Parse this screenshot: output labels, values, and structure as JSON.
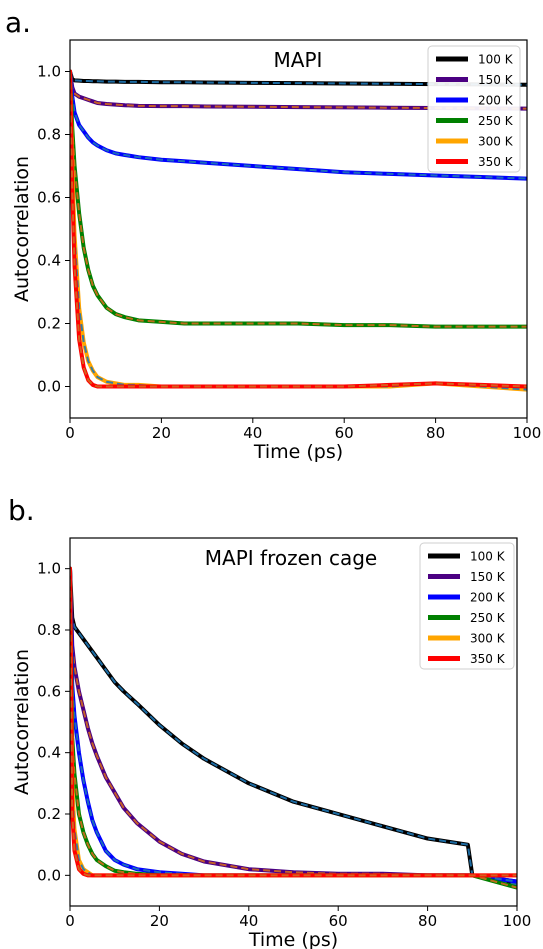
{
  "chart_data": [
    {
      "type": "line",
      "panel_label": "a.",
      "title": "MAPI",
      "xlabel": "Time (ps)",
      "ylabel": "Autocorrelation",
      "xlim": [
        0,
        100
      ],
      "ylim": [
        -0.1,
        1.1
      ],
      "xticks": [
        0,
        20,
        40,
        60,
        80,
        100
      ],
      "yticks": [
        0.0,
        0.2,
        0.4,
        0.6,
        0.8,
        1.0
      ],
      "ytick_labels": [
        "0.0",
        "0.2",
        "0.4",
        "0.6",
        "0.8",
        "1.0"
      ],
      "grid": false,
      "legend_position": "top-right",
      "x": [
        0,
        0.5,
        1,
        2,
        3,
        4,
        5,
        6,
        8,
        10,
        12,
        15,
        20,
        25,
        30,
        40,
        50,
        60,
        70,
        80,
        90,
        100
      ],
      "series": [
        {
          "name": "100 K",
          "color": "#000000",
          "values": [
            1.0,
            0.975,
            0.972,
            0.971,
            0.97,
            0.97,
            0.969,
            0.969,
            0.968,
            0.968,
            0.967,
            0.967,
            0.966,
            0.966,
            0.965,
            0.964,
            0.963,
            0.962,
            0.961,
            0.96,
            0.959,
            0.958
          ]
        },
        {
          "name": "150 K",
          "color": "#4b0082",
          "values": [
            1.0,
            0.95,
            0.93,
            0.92,
            0.915,
            0.91,
            0.905,
            0.9,
            0.897,
            0.895,
            0.893,
            0.891,
            0.89,
            0.89,
            0.889,
            0.888,
            0.887,
            0.886,
            0.885,
            0.884,
            0.883,
            0.882
          ]
        },
        {
          "name": "200 K",
          "color": "#0000ff",
          "values": [
            1.0,
            0.92,
            0.87,
            0.83,
            0.81,
            0.79,
            0.775,
            0.765,
            0.75,
            0.74,
            0.735,
            0.728,
            0.72,
            0.715,
            0.71,
            0.7,
            0.69,
            0.68,
            0.675,
            0.67,
            0.665,
            0.66
          ]
        },
        {
          "name": "250 K",
          "color": "#008000",
          "values": [
            1.0,
            0.82,
            0.7,
            0.55,
            0.44,
            0.37,
            0.32,
            0.29,
            0.25,
            0.23,
            0.22,
            0.21,
            0.205,
            0.2,
            0.2,
            0.2,
            0.2,
            0.195,
            0.195,
            0.19,
            0.19,
            0.19
          ]
        },
        {
          "name": "300 K",
          "color": "#ffa500",
          "values": [
            1.0,
            0.7,
            0.48,
            0.25,
            0.14,
            0.08,
            0.05,
            0.03,
            0.015,
            0.01,
            0.005,
            0.005,
            0.0,
            0.0,
            0.0,
            0.0,
            0.0,
            0.0,
            0.0,
            0.01,
            0.0,
            -0.01
          ]
        },
        {
          "name": "350 K",
          "color": "#ff0000",
          "values": [
            1.0,
            0.62,
            0.38,
            0.15,
            0.06,
            0.02,
            0.005,
            0.0,
            0.0,
            0.0,
            0.0,
            0.0,
            0.0,
            0.0,
            0.0,
            0.0,
            0.0,
            0.0,
            0.005,
            0.01,
            0.005,
            0.0
          ]
        }
      ]
    },
    {
      "type": "line",
      "panel_label": "b.",
      "title": "MAPI frozen cage",
      "xlabel": "Time (ps)",
      "ylabel": "Autocorrelation",
      "xlim": [
        0,
        100
      ],
      "ylim": [
        -0.1,
        1.1
      ],
      "xticks": [
        0,
        20,
        40,
        60,
        80,
        100
      ],
      "yticks": [
        0.0,
        0.2,
        0.4,
        0.6,
        0.8,
        1.0
      ],
      "ytick_labels": [
        "0.0",
        "0.2",
        "0.4",
        "0.6",
        "0.8",
        "1.0"
      ],
      "grid": false,
      "legend_position": "top-right",
      "x": [
        0,
        0.5,
        1,
        2,
        3,
        4,
        5,
        6,
        8,
        10,
        12,
        15,
        20,
        25,
        30,
        40,
        50,
        60,
        70,
        80,
        89,
        90,
        100
      ],
      "series": [
        {
          "name": "100 K",
          "color": "#000000",
          "values": [
            1.0,
            0.84,
            0.81,
            0.79,
            0.77,
            0.75,
            0.73,
            0.71,
            0.67,
            0.63,
            0.6,
            0.56,
            0.49,
            0.43,
            0.38,
            0.3,
            0.24,
            0.2,
            0.16,
            0.12,
            0.1,
            0.0,
            -0.03
          ]
        },
        {
          "name": "150 K",
          "color": "#4b0082",
          "values": [
            1.0,
            0.75,
            0.68,
            0.6,
            0.54,
            0.48,
            0.43,
            0.39,
            0.32,
            0.27,
            0.22,
            0.17,
            0.11,
            0.07,
            0.045,
            0.02,
            0.01,
            0.005,
            0.005,
            0.0,
            0.0,
            0.0,
            -0.02
          ]
        },
        {
          "name": "200 K",
          "color": "#0000ff",
          "values": [
            1.0,
            0.62,
            0.52,
            0.4,
            0.31,
            0.24,
            0.18,
            0.14,
            0.08,
            0.05,
            0.035,
            0.02,
            0.01,
            0.005,
            0.0,
            0.0,
            0.0,
            0.0,
            0.0,
            0.0,
            0.0,
            0.0,
            -0.02
          ]
        },
        {
          "name": "250 K",
          "color": "#008000",
          "values": [
            1.0,
            0.45,
            0.33,
            0.2,
            0.14,
            0.1,
            0.07,
            0.05,
            0.03,
            0.015,
            0.01,
            0.005,
            0.0,
            0.0,
            0.0,
            0.0,
            0.0,
            0.0,
            0.0,
            0.0,
            0.0,
            0.0,
            -0.04
          ]
        },
        {
          "name": "300 K",
          "color": "#ffa500",
          "values": [
            1.0,
            0.3,
            0.15,
            0.05,
            0.02,
            0.01,
            0.0,
            0.0,
            0.0,
            0.0,
            0.0,
            0.0,
            0.0,
            0.0,
            0.0,
            0.0,
            0.0,
            0.0,
            0.0,
            0.0,
            0.0,
            0.0,
            0.0
          ]
        },
        {
          "name": "350 K",
          "color": "#ff0000",
          "values": [
            1.0,
            0.2,
            0.08,
            0.02,
            0.005,
            0.0,
            0.0,
            0.0,
            0.0,
            0.0,
            0.0,
            0.0,
            0.0,
            0.0,
            0.0,
            0.0,
            0.0,
            0.0,
            0.0,
            0.0,
            0.0,
            0.0,
            0.0
          ]
        }
      ]
    }
  ]
}
